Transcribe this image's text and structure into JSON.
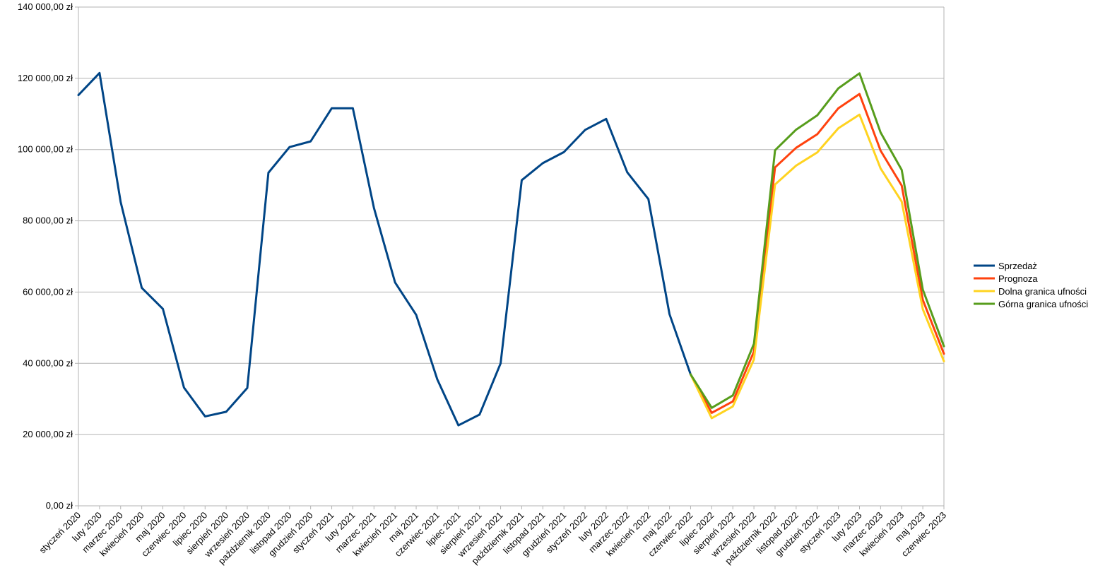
{
  "chart_data": {
    "type": "line",
    "title": "",
    "xlabel": "",
    "ylabel": "",
    "ylim": [
      0,
      140000
    ],
    "y_ticks": [
      "0,00 zł",
      "20 000,00 zł",
      "40 000,00 zł",
      "60 000,00 zł",
      "80 000,00 zł",
      "100 000,00 zł",
      "120 000,00 zł",
      "140 000,00 zł"
    ],
    "categories": [
      "styczeń 2020",
      "luty 2020",
      "marzec 2020",
      "kwiecień 2020",
      "maj 2020",
      "czerwiec 2020",
      "lipiec 2020",
      "sierpień 2020",
      "wrzesień 2020",
      "październik 2020",
      "listopad 2020",
      "grudzień 2020",
      "styczeń 2021",
      "luty 2021",
      "marzec 2021",
      "kwiecień 2021",
      "maj 2021",
      "czerwiec 2021",
      "lipiec 2021",
      "sierpień 2021",
      "wrzesień 2021",
      "październik 2021",
      "listopad 2021",
      "grudzień 2021",
      "styczeń 2022",
      "luty 2022",
      "marzec 2022",
      "kwiecień 2022",
      "maj 2022",
      "czerwiec 2022",
      "lipiec 2022",
      "sierpień 2022",
      "wrzesień 2022",
      "październik 2022",
      "listopad 2022",
      "grudzień 2022",
      "styczeń 2023",
      "luty 2023",
      "marzec 2023",
      "kwiecień 2023",
      "maj 2023",
      "czerwiec 2023"
    ],
    "grid": true,
    "legend_position": "right",
    "series": [
      {
        "name": "Sprzedaż",
        "color": "#004586",
        "values": [
          115300,
          121500,
          85300,
          61200,
          55300,
          33200,
          25100,
          26400,
          33100,
          93500,
          100700,
          102300,
          111600,
          111600,
          83600,
          62700,
          53600,
          35500,
          22600,
          25600,
          40000,
          91400,
          96200,
          99300,
          105500,
          108600,
          93600,
          86100,
          53800,
          36900,
          null,
          null,
          null,
          null,
          null,
          null,
          null,
          null,
          null,
          null,
          null,
          null
        ]
      },
      {
        "name": "Prognoza",
        "color": "#ff420e",
        "values": [
          null,
          null,
          null,
          null,
          null,
          null,
          null,
          null,
          null,
          null,
          null,
          null,
          null,
          null,
          null,
          null,
          null,
          null,
          null,
          null,
          null,
          null,
          null,
          null,
          null,
          null,
          null,
          null,
          null,
          36900,
          26100,
          29300,
          43300,
          95000,
          100500,
          104300,
          111600,
          115600,
          99700,
          89900,
          57800,
          42700
        ]
      },
      {
        "name": "Dolna granica ufności",
        "color": "#ffd320",
        "values": [
          null,
          null,
          null,
          null,
          null,
          null,
          null,
          null,
          null,
          null,
          null,
          null,
          null,
          null,
          null,
          null,
          null,
          null,
          null,
          null,
          null,
          null,
          null,
          null,
          null,
          null,
          null,
          null,
          null,
          36900,
          24600,
          27900,
          41100,
          90200,
          95500,
          99200,
          106000,
          109800,
          94700,
          85400,
          55200,
          40600
        ]
      },
      {
        "name": "Górna granica ufności",
        "color": "#579d1c",
        "values": [
          null,
          null,
          null,
          null,
          null,
          null,
          null,
          null,
          null,
          null,
          null,
          null,
          null,
          null,
          null,
          null,
          null,
          null,
          null,
          null,
          null,
          null,
          null,
          null,
          null,
          null,
          null,
          null,
          null,
          36900,
          27500,
          31000,
          45500,
          99800,
          105600,
          109600,
          117200,
          121400,
          104800,
          94300,
          60700,
          44800
        ]
      }
    ]
  }
}
